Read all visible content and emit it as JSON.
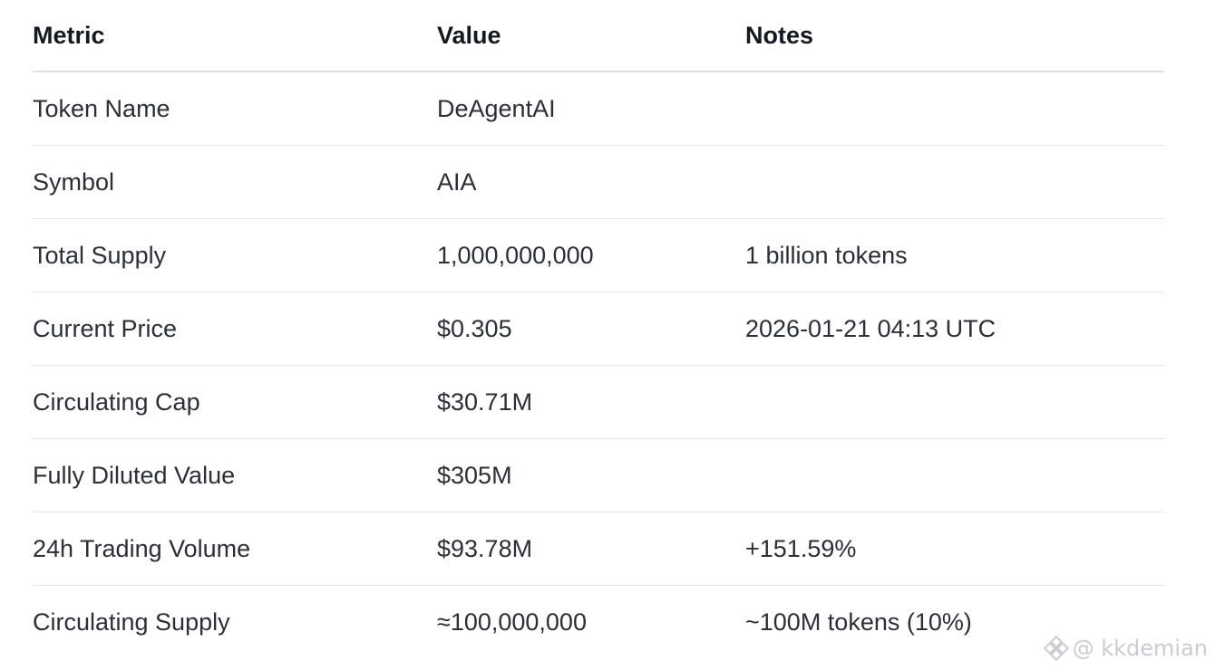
{
  "table": {
    "headers": [
      "Metric",
      "Value",
      "Notes"
    ],
    "rows": [
      {
        "metric": "Token Name",
        "value": "DeAgentAI",
        "notes": ""
      },
      {
        "metric": "Symbol",
        "value": "AIA",
        "notes": ""
      },
      {
        "metric": "Total Supply",
        "value": "1,000,000,000",
        "notes": "1 billion tokens"
      },
      {
        "metric": "Current Price",
        "value": "$0.305",
        "notes": "2026-01-21 04:13 UTC"
      },
      {
        "metric": "Circulating Cap",
        "value": "$30.71M",
        "notes": ""
      },
      {
        "metric": "Fully Diluted Value",
        "value": "$305M",
        "notes": ""
      },
      {
        "metric": "24h Trading Volume",
        "value": "$93.78M",
        "notes": "+151.59%"
      },
      {
        "metric": "Circulating Supply",
        "value": "≈100,000,000",
        "notes": "~100M tokens (10%)"
      }
    ]
  },
  "watermark": {
    "text": "@ kkdemian",
    "icon": "binance-logo-icon"
  }
}
